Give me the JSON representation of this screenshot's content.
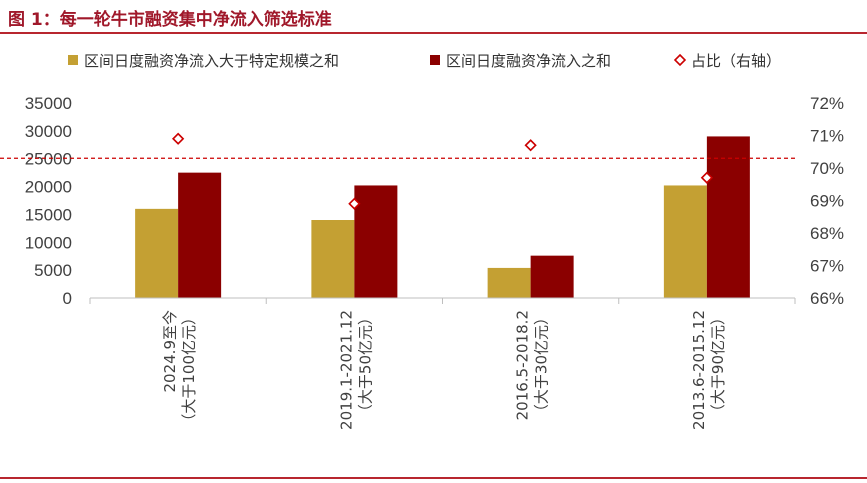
{
  "chart_data": {
    "type": "bar",
    "title": "图 1：每一轮牛市融资集中净流入筛选标准",
    "categories": [
      {
        "line1": "2024.9至今",
        "line2": "（大于100亿元）"
      },
      {
        "line1": "2019.1-2021.12",
        "line2": "（大于50亿元）"
      },
      {
        "line1": "2016.5-2018.2",
        "line2": "（大于30亿元）"
      },
      {
        "line1": "2013.6-2015.12",
        "line2": "（大于90亿元）"
      }
    ],
    "series": [
      {
        "name": "区间日度融资净流入大于特定规模之和",
        "type": "bar",
        "axis": "left",
        "color": "#c4a033",
        "values": [
          16000,
          14000,
          5400,
          20200
        ]
      },
      {
        "name": "区间日度融资净流入之和",
        "type": "bar",
        "axis": "left",
        "color": "#8b0000",
        "values": [
          22500,
          20200,
          7600,
          29000
        ]
      },
      {
        "name": "占比（右轴）",
        "type": "scatter",
        "axis": "right",
        "color": "#cc0000",
        "values": [
          70.9,
          68.9,
          70.7,
          69.7
        ]
      }
    ],
    "y_left": {
      "min": 0,
      "max": 35000,
      "ticks": [
        "0",
        "5000",
        "10000",
        "15000",
        "20000",
        "25000",
        "30000",
        "35000"
      ]
    },
    "y_right": {
      "min": 66,
      "max": 72,
      "ticks": [
        "66%",
        "67%",
        "68%",
        "69%",
        "70%",
        "71%",
        "72%"
      ]
    },
    "reference_line": {
      "axis": "right",
      "value": 70.3,
      "style": "dashed",
      "color": "#cc0000"
    },
    "grid": false,
    "legend_position": "top"
  }
}
